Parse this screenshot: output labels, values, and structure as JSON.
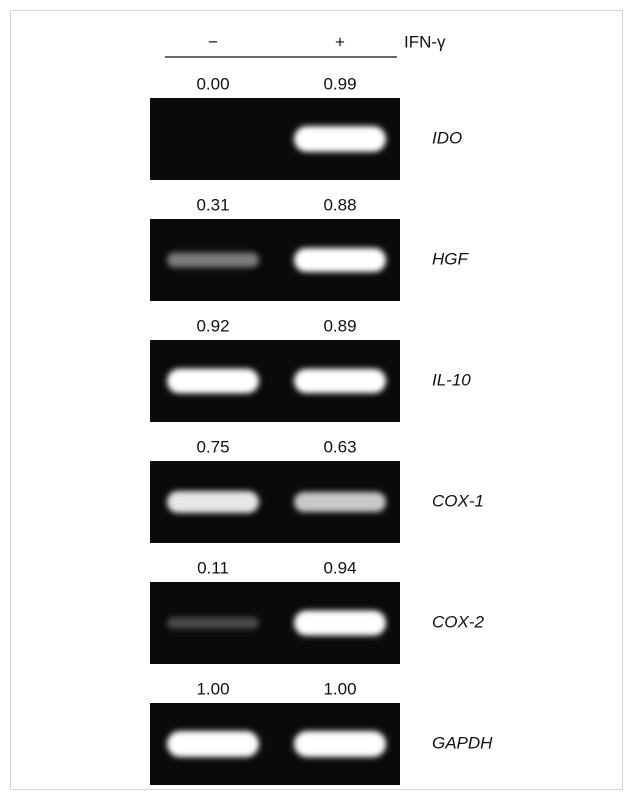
{
  "header": {
    "minus": "−",
    "plus": "+",
    "treatment": "IFN-γ"
  },
  "rows": [
    {
      "gene": "IDO",
      "values": [
        "0.00",
        "0.99"
      ]
    },
    {
      "gene": "HGF",
      "values": [
        "0.31",
        "0.88"
      ]
    },
    {
      "gene": "IL-10",
      "values": [
        "0.92",
        "0.89"
      ]
    },
    {
      "gene": "COX-1",
      "values": [
        "0.75",
        "0.63"
      ]
    },
    {
      "gene": "COX-2",
      "values": [
        "0.11",
        "0.94"
      ]
    },
    {
      "gene": "GAPDH",
      "values": [
        "1.00",
        "1.00"
      ]
    }
  ]
}
